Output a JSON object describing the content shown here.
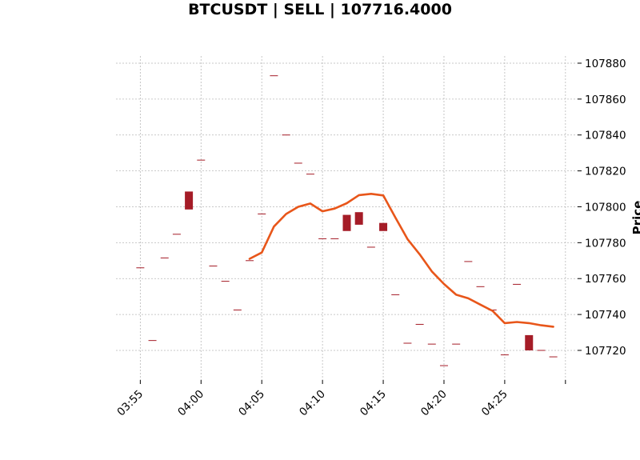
{
  "chart_data": {
    "type": "candlestick",
    "title": "BTCUSDT | SELL | 107716.4000",
    "xlabel": "",
    "ylabel": "Price",
    "x_ticks": [
      "03:55",
      "04:00",
      "04:05",
      "04:10",
      "04:15",
      "04:20",
      "04:25",
      ""
    ],
    "x_tick_times": [
      "03:55",
      "04:00",
      "04:05",
      "04:10",
      "04:15",
      "04:20",
      "04:25",
      "04:30"
    ],
    "xlim": [
      "03:53",
      "04:31"
    ],
    "y_ticks": [
      107720,
      107740,
      107760,
      107780,
      107800,
      107820,
      107840,
      107860,
      107880
    ],
    "ylim": [
      107703.5,
      107884
    ],
    "grid": true,
    "y_axis_position": "right",
    "colors": {
      "candle": "#a51c27",
      "line": "#e8561a",
      "grid": "#b8b8b8"
    },
    "candles": [
      {
        "t": "03:55",
        "open": 107766,
        "close": 107766
      },
      {
        "t": "03:56",
        "open": 107725.5,
        "close": 107725.5
      },
      {
        "t": "03:57",
        "open": 107771.5,
        "close": 107771.5
      },
      {
        "t": "03:58",
        "open": 107784.7,
        "close": 107784.7
      },
      {
        "t": "03:59",
        "open": 107808.5,
        "close": 107798.5
      },
      {
        "t": "04:00",
        "open": 107826,
        "close": 107826
      },
      {
        "t": "04:01",
        "open": 107767,
        "close": 107767
      },
      {
        "t": "04:02",
        "open": 107758.5,
        "close": 107758.5
      },
      {
        "t": "04:03",
        "open": 107742.5,
        "close": 107742.5
      },
      {
        "t": "04:04",
        "open": 107770,
        "close": 107770
      },
      {
        "t": "04:05",
        "open": 107796,
        "close": 107796
      },
      {
        "t": "04:06",
        "open": 107873,
        "close": 107873
      },
      {
        "t": "04:07",
        "open": 107840,
        "close": 107840
      },
      {
        "t": "04:08",
        "open": 107824.3,
        "close": 107824.3
      },
      {
        "t": "04:09",
        "open": 107818.2,
        "close": 107818.2
      },
      {
        "t": "04:10",
        "open": 107782.2,
        "close": 107782.2
      },
      {
        "t": "04:11",
        "open": 107782.2,
        "close": 107782.2
      },
      {
        "t": "04:12",
        "open": 107795.5,
        "close": 107786.5
      },
      {
        "t": "04:13",
        "open": 107797,
        "close": 107790
      },
      {
        "t": "04:14",
        "open": 107777.5,
        "close": 107777.5
      },
      {
        "t": "04:15",
        "open": 107791,
        "close": 107786.5
      },
      {
        "t": "04:16",
        "open": 107751,
        "close": 107751
      },
      {
        "t": "04:17",
        "open": 107724,
        "close": 107724
      },
      {
        "t": "04:18",
        "open": 107734.5,
        "close": 107734.5
      },
      {
        "t": "04:19",
        "open": 107723.5,
        "close": 107723.5
      },
      {
        "t": "04:20",
        "open": 107711.5,
        "close": 107711.5
      },
      {
        "t": "04:21",
        "open": 107723.5,
        "close": 107723.5
      },
      {
        "t": "04:22",
        "open": 107769.5,
        "close": 107769.5
      },
      {
        "t": "04:23",
        "open": 107755.5,
        "close": 107755.5
      },
      {
        "t": "04:24",
        "open": 107742.5,
        "close": 107742.5
      },
      {
        "t": "04:25",
        "open": 107717.5,
        "close": 107717.5
      },
      {
        "t": "04:26",
        "open": 107756.8,
        "close": 107756.8
      },
      {
        "t": "04:27",
        "open": 107728.5,
        "close": 107720
      },
      {
        "t": "04:28",
        "open": 107720,
        "close": 107720
      },
      {
        "t": "04:29",
        "open": 107716.4,
        "close": 107716.4
      }
    ],
    "series": [
      {
        "x": [
          "04:04",
          "04:05",
          "04:06",
          "04:07",
          "04:08",
          "04:09",
          "04:10",
          "04:11",
          "04:12",
          "04:13",
          "04:14",
          "04:15",
          "04:16",
          "04:17",
          "04:18",
          "04:19",
          "04:20",
          "04:21",
          "04:22",
          "04:23",
          "04:24",
          "04:25",
          "04:26",
          "04:27",
          "04:28",
          "04:29"
        ],
        "values": [
          107771,
          107774.5,
          107789,
          107796,
          107800,
          107801.8,
          107797.5,
          107799,
          107802,
          107806.5,
          107807.2,
          107806.3,
          107794,
          107782,
          107773.5,
          107764,
          107757,
          107751,
          107749,
          107745.5,
          107742,
          107735.2,
          107735.8,
          107735.2,
          107734,
          107733.2
        ]
      }
    ]
  }
}
